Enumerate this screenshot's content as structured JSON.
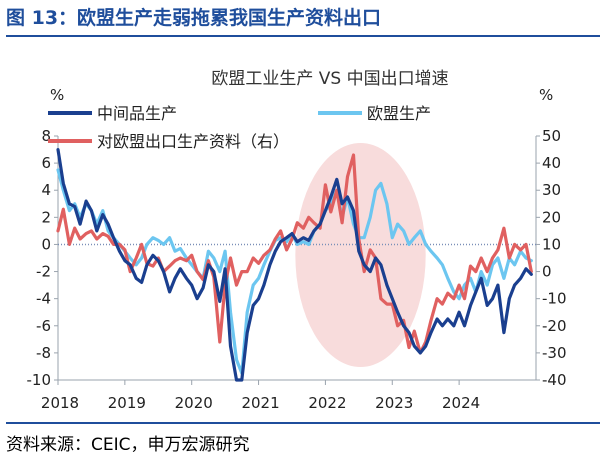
{
  "figure_title": "图 13：欧盟生产走弱拖累我国生产资料出口",
  "source": "资料来源：CEIC，申万宏源研究",
  "chart_data": {
    "type": "line",
    "title": "欧盟工业生产 VS 中国出口增速",
    "left_axis_unit": "%",
    "right_axis_unit": "%",
    "ylim_left": [
      -10,
      8
    ],
    "ylim_right": [
      -40,
      50
    ],
    "yticks_left": [
      8,
      6,
      4,
      2,
      0,
      -2,
      -4,
      -6,
      -8,
      -10
    ],
    "yticks_right": [
      50,
      40,
      30,
      20,
      10,
      0,
      -10,
      -20,
      -30,
      -40
    ],
    "xlim": [
      2018.0,
      2025.15
    ],
    "xticks": [
      2018,
      2019,
      2020,
      2021,
      2022,
      2023,
      2024
    ],
    "xtick_labels": [
      "2018",
      "2019",
      "2020",
      "2021",
      "2022",
      "2023",
      "2024"
    ],
    "zero_line": "dotted",
    "highlight_ellipse": {
      "x_from": 2021.55,
      "x_to": 2023.5,
      "color": "#f8dcdc"
    },
    "legend": [
      {
        "label": "中间品生产",
        "color": "#1a3f8f",
        "position": "top-left"
      },
      {
        "label": "欧盟生产",
        "color": "#6cc6f0",
        "position": "top-right"
      },
      {
        "label": "对欧盟出口生产资料（右）",
        "color": "#e06060",
        "position": "top-left-second"
      }
    ],
    "series": [
      {
        "name": "中间品生产",
        "axis": "left",
        "color": "#1a3f8f",
        "x": [
          2018.0,
          2018.08,
          2018.17,
          2018.25,
          2018.33,
          2018.42,
          2018.5,
          2018.58,
          2018.67,
          2018.75,
          2018.83,
          2018.92,
          2019.0,
          2019.08,
          2019.17,
          2019.25,
          2019.33,
          2019.42,
          2019.5,
          2019.58,
          2019.67,
          2019.75,
          2019.83,
          2019.92,
          2020.0,
          2020.08,
          2020.17,
          2020.25,
          2020.33,
          2020.42,
          2020.5,
          2020.58,
          2020.67,
          2020.75,
          2020.83,
          2020.92,
          2021.0,
          2021.08,
          2021.17,
          2021.25,
          2021.33,
          2021.42,
          2021.5,
          2021.58,
          2021.67,
          2021.75,
          2021.83,
          2021.92,
          2022.0,
          2022.08,
          2022.17,
          2022.25,
          2022.33,
          2022.42,
          2022.5,
          2022.58,
          2022.67,
          2022.75,
          2022.83,
          2022.92,
          2023.0,
          2023.08,
          2023.17,
          2023.25,
          2023.33,
          2023.42,
          2023.5,
          2023.58,
          2023.67,
          2023.75,
          2023.83,
          2023.92,
          2024.0,
          2024.08,
          2024.17,
          2024.25,
          2024.33,
          2024.42,
          2024.5,
          2024.58,
          2024.67,
          2024.75,
          2024.83,
          2024.92,
          2025.0,
          2025.08
        ],
        "values": [
          7.0,
          4.5,
          3.0,
          2.8,
          1.5,
          3.2,
          2.5,
          1.0,
          2.2,
          1.5,
          0.5,
          -0.5,
          -1.2,
          -1.5,
          -2.5,
          -2.8,
          -1.5,
          -0.8,
          -1.2,
          -2.0,
          -3.5,
          -2.5,
          -1.8,
          -2.5,
          -3.0,
          -4.0,
          -3.2,
          -1.5,
          -2.0,
          -4.2,
          -1.8,
          -7.5,
          -10.0,
          -10.0,
          -6.5,
          -4.5,
          -4.0,
          -3.0,
          -1.5,
          -0.5,
          0.2,
          0.5,
          0.8,
          0.2,
          0.5,
          0.3,
          1.0,
          1.5,
          2.5,
          3.5,
          4.8,
          3.0,
          3.5,
          2.5,
          -0.5,
          -1.5,
          -2.0,
          -1.0,
          -1.5,
          -3.0,
          -4.0,
          -5.0,
          -6.0,
          -6.5,
          -7.5,
          -8.0,
          -7.5,
          -6.5,
          -5.5,
          -6.0,
          -5.5,
          -6.0,
          -5.0,
          -6.0,
          -4.5,
          -3.5,
          -2.5,
          -4.5,
          -4.0,
          -3.0,
          -6.5,
          -4.0,
          -3.0,
          -2.5,
          -1.8,
          -2.2
        ]
      },
      {
        "name": "欧盟生产",
        "axis": "left",
        "color": "#6cc6f0",
        "x": [
          2018.0,
          2018.08,
          2018.17,
          2018.25,
          2018.33,
          2018.42,
          2018.5,
          2018.58,
          2018.67,
          2018.75,
          2018.83,
          2018.92,
          2019.0,
          2019.08,
          2019.17,
          2019.25,
          2019.33,
          2019.42,
          2019.5,
          2019.58,
          2019.67,
          2019.75,
          2019.83,
          2019.92,
          2020.0,
          2020.08,
          2020.17,
          2020.25,
          2020.33,
          2020.42,
          2020.5,
          2020.58,
          2020.67,
          2020.75,
          2020.83,
          2020.92,
          2021.0,
          2021.08,
          2021.17,
          2021.25,
          2021.33,
          2021.42,
          2021.5,
          2021.58,
          2021.67,
          2021.75,
          2021.83,
          2021.92,
          2022.0,
          2022.08,
          2022.17,
          2022.25,
          2022.33,
          2022.42,
          2022.5,
          2022.58,
          2022.67,
          2022.75,
          2022.83,
          2022.92,
          2023.0,
          2023.08,
          2023.17,
          2023.25,
          2023.33,
          2023.42,
          2023.5,
          2023.58,
          2023.67,
          2023.75,
          2023.83,
          2023.92,
          2024.0,
          2024.08,
          2024.17,
          2024.25,
          2024.33,
          2024.42,
          2024.5,
          2024.58,
          2024.67,
          2024.75,
          2024.83,
          2024.92,
          2025.0,
          2025.08
        ],
        "values": [
          5.5,
          4.0,
          2.5,
          3.0,
          2.0,
          3.0,
          2.5,
          1.5,
          2.5,
          1.0,
          0.5,
          0.0,
          -0.5,
          -1.0,
          -1.5,
          -1.0,
          0.0,
          0.5,
          0.3,
          0.0,
          0.5,
          -0.5,
          -0.3,
          -1.0,
          -1.5,
          -2.0,
          -2.5,
          -0.5,
          -1.0,
          -2.0,
          -0.5,
          -5.0,
          -8.5,
          -9.5,
          -5.0,
          -3.0,
          -2.5,
          -1.5,
          -0.5,
          0.3,
          0.5,
          0.2,
          0.8,
          0.0,
          0.2,
          0.0,
          1.0,
          1.5,
          2.5,
          3.0,
          4.0,
          2.0,
          3.5,
          1.5,
          0.5,
          0.5,
          2.0,
          4.0,
          4.5,
          3.0,
          0.5,
          1.5,
          1.0,
          0.0,
          0.5,
          1.0,
          0.0,
          -0.5,
          -1.0,
          -1.5,
          -2.5,
          -3.5,
          -4.0,
          -3.0,
          -2.5,
          -3.5,
          -2.0,
          -3.0,
          -1.5,
          -1.0,
          -2.5,
          -1.0,
          -1.5,
          -0.5,
          -1.0,
          -1.2
        ]
      },
      {
        "name": "对欧盟出口生产资料（右）",
        "axis": "right",
        "color": "#e06060",
        "x": [
          2018.0,
          2018.08,
          2018.17,
          2018.25,
          2018.33,
          2018.42,
          2018.5,
          2018.58,
          2018.67,
          2018.75,
          2018.83,
          2018.92,
          2019.0,
          2019.08,
          2019.17,
          2019.25,
          2019.33,
          2019.42,
          2019.5,
          2019.58,
          2019.67,
          2019.75,
          2019.83,
          2019.92,
          2020.0,
          2020.08,
          2020.17,
          2020.25,
          2020.33,
          2020.42,
          2020.5,
          2020.58,
          2020.67,
          2020.75,
          2020.83,
          2020.92,
          2021.0,
          2021.08,
          2021.17,
          2021.25,
          2021.33,
          2021.42,
          2021.5,
          2021.58,
          2021.67,
          2021.75,
          2021.83,
          2021.92,
          2022.0,
          2022.08,
          2022.17,
          2022.25,
          2022.33,
          2022.42,
          2022.5,
          2022.58,
          2022.67,
          2022.75,
          2022.83,
          2022.92,
          2023.0,
          2023.08,
          2023.17,
          2023.25,
          2023.33,
          2023.42,
          2023.5,
          2023.58,
          2023.67,
          2023.75,
          2023.83,
          2023.92,
          2024.0,
          2024.08,
          2024.17,
          2024.25,
          2024.33,
          2024.42,
          2024.5,
          2024.58,
          2024.67,
          2024.75,
          2024.83,
          2024.92,
          2025.0,
          2025.08
        ],
        "values": [
          15,
          23,
          10,
          16,
          12,
          14,
          15,
          12,
          14,
          13,
          10,
          10,
          8,
          0,
          5,
          10,
          3,
          2,
          5,
          0,
          2,
          4,
          5,
          4,
          6,
          0,
          -3,
          4,
          -2,
          -26,
          -5,
          5,
          -5,
          0,
          0,
          5,
          3,
          6,
          8,
          12,
          15,
          8,
          12,
          18,
          16,
          20,
          18,
          16,
          32,
          22,
          30,
          18,
          35,
          43,
          12,
          0,
          8,
          5,
          -10,
          -12,
          -12,
          -20,
          -18,
          -28,
          -22,
          -30,
          -26,
          -18,
          -10,
          -12,
          -8,
          -10,
          -5,
          -10,
          2,
          0,
          5,
          0,
          5,
          8,
          16,
          5,
          10,
          8,
          10,
          0
        ]
      }
    ]
  }
}
